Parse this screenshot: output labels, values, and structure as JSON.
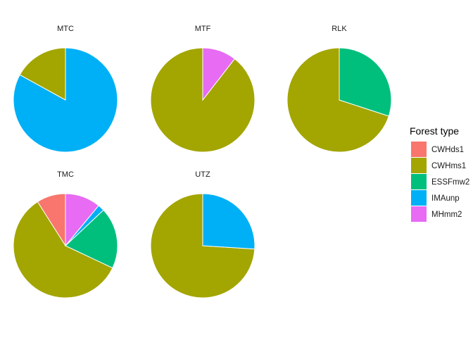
{
  "chart_data": {
    "type": "pie",
    "legend": {
      "title": "Forest type",
      "position": "right",
      "entries": [
        {
          "name": "CWHds1",
          "color": "#F8766D"
        },
        {
          "name": "CWHms1",
          "color": "#A3A500"
        },
        {
          "name": "ESSFmw2",
          "color": "#00BF7D"
        },
        {
          "name": "IMAunp",
          "color": "#00B0F6"
        },
        {
          "name": "MHmm2",
          "color": "#E76BF3"
        }
      ]
    },
    "facets": [
      {
        "title": "MTC",
        "slices": [
          {
            "category": "CWHms1",
            "value": 0.17
          },
          {
            "category": "IMAunp",
            "value": 0.83
          }
        ]
      },
      {
        "title": "MTF",
        "slices": [
          {
            "category": "CWHms1",
            "value": 0.895
          },
          {
            "category": "MHmm2",
            "value": 0.105
          }
        ]
      },
      {
        "title": "RLK",
        "slices": [
          {
            "category": "CWHms1",
            "value": 0.7
          },
          {
            "category": "ESSFmw2",
            "value": 0.3
          }
        ]
      },
      {
        "title": "TMC",
        "slices": [
          {
            "category": "CWHds1",
            "value": 0.09
          },
          {
            "category": "CWHms1",
            "value": 0.59
          },
          {
            "category": "ESSFmw2",
            "value": 0.19
          },
          {
            "category": "IMAunp",
            "value": 0.02
          },
          {
            "category": "MHmm2",
            "value": 0.11
          }
        ]
      },
      {
        "title": "UTZ",
        "slices": [
          {
            "category": "CWHms1",
            "value": 0.74
          },
          {
            "category": "IMAunp",
            "value": 0.26
          }
        ]
      }
    ]
  }
}
